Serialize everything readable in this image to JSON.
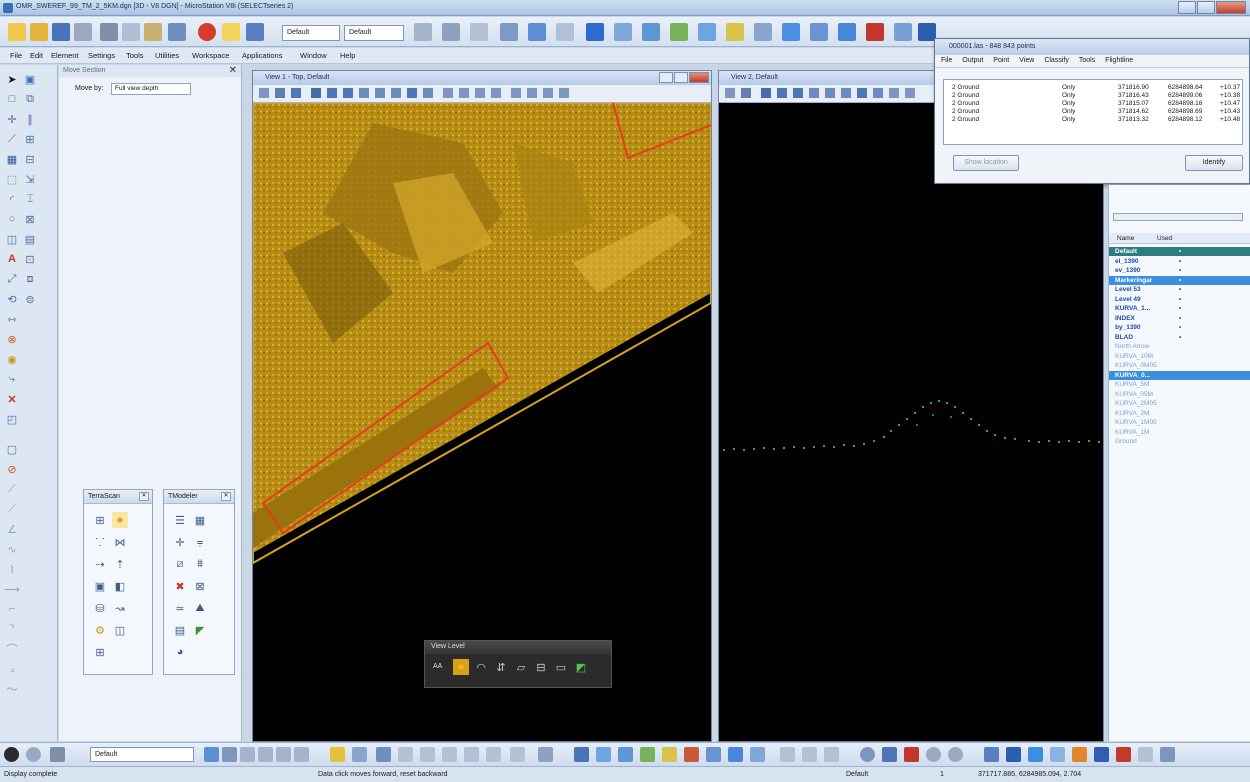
{
  "window": {
    "title": "OMR_SWEREF_99_TM_2_5KM.dgn [3D - V8 DGN] - MicroStation V8i (SELECTseries 2)"
  },
  "toolbar": {
    "level_combo": "Default",
    "style_combo": "Default"
  },
  "menu": [
    "File",
    "Edit",
    "Element",
    "Settings",
    "Tools",
    "Utilities",
    "Workspace",
    "Applications",
    "Window",
    "Help"
  ],
  "move_section": {
    "title": "Move Section",
    "move_by_label": "Move by:",
    "move_by_value": "Full view depth"
  },
  "mini_toolboxes": {
    "terrascan": "TerraScan",
    "tmodeler": "TModeler"
  },
  "view1": {
    "title": "View 1 - Top, Default"
  },
  "view2": {
    "title": "View 2, Default"
  },
  "view_level": {
    "title": "View Level",
    "aa_label": "AA"
  },
  "points_dialog": {
    "title": "000001.las - 848 843 points",
    "menu": [
      "File",
      "Output",
      "Point",
      "View",
      "Classify",
      "Tools",
      "Flightline"
    ],
    "rows": [
      {
        "cls": "2 Ground",
        "mode": "Only",
        "x": "371816.90",
        "y": "6284898.64",
        "z": "+10.37"
      },
      {
        "cls": "2 Ground",
        "mode": "Only",
        "x": "371816.43",
        "y": "6284899.06",
        "z": "+10.38"
      },
      {
        "cls": "2 Ground",
        "mode": "Only",
        "x": "371815.07",
        "y": "6284898.16",
        "z": "+10.47"
      },
      {
        "cls": "2 Ground",
        "mode": "Only",
        "x": "371814.62",
        "y": "6284898.69",
        "z": "+10.43"
      },
      {
        "cls": "2 Ground",
        "mode": "Only",
        "x": "371813.32",
        "y": "6284898.12",
        "z": "+10.48"
      }
    ],
    "show_location": "Show location",
    "identify": "Identify"
  },
  "levels": {
    "header_name": "Name",
    "header_used": "Used",
    "items": [
      {
        "name": "Default",
        "used": "•",
        "style": "sel-dark"
      },
      {
        "name": "el_1390",
        "used": "•",
        "style": "used"
      },
      {
        "name": "ev_1390",
        "used": "•",
        "style": "used"
      },
      {
        "name": "Markeringar",
        "used": "•",
        "style": "sel-blue"
      },
      {
        "name": "Level 53",
        "used": "•",
        "style": "used"
      },
      {
        "name": "Level 49",
        "used": "•",
        "style": "used"
      },
      {
        "name": "KURVA_1...",
        "used": "•",
        "style": "used"
      },
      {
        "name": "INDEX",
        "used": "•",
        "style": "used"
      },
      {
        "name": "by_1390",
        "used": "•",
        "style": "used"
      },
      {
        "name": "BLAD",
        "used": "•",
        "style": "used"
      },
      {
        "name": "North Arrow",
        "used": "",
        "style": "unused"
      },
      {
        "name": "KURVA_10M",
        "used": "",
        "style": "unused"
      },
      {
        "name": "KURVA_0M05",
        "used": "",
        "style": "unused"
      },
      {
        "name": "KURVA_0...",
        "used": "",
        "style": "sel-blue"
      },
      {
        "name": "KURVA_5M",
        "used": "",
        "style": "unused"
      },
      {
        "name": "KURVA_05M",
        "used": "",
        "style": "unused"
      },
      {
        "name": "KURVA_2M05",
        "used": "",
        "style": "unused"
      },
      {
        "name": "KURVA_2M",
        "used": "",
        "style": "unused"
      },
      {
        "name": "KURVA_1M05",
        "used": "",
        "style": "unused"
      },
      {
        "name": "KURVA_1M",
        "used": "",
        "style": "unused"
      },
      {
        "name": "Ground",
        "used": "",
        "style": "unused"
      }
    ]
  },
  "bottom_toolbar": {
    "level": "Default"
  },
  "status": {
    "message": "Display complete",
    "prompt": "Data click moves forward, reset backward",
    "level": "Default",
    "view": "1",
    "coords": "371717.885, 6284985.094, 2.704"
  },
  "colors": {
    "accent": "#3a6fb5",
    "selected_dark": "#2f7d7d",
    "selected_blue": "#3b8ee0",
    "surface": "#b88d14",
    "outline": "#e63b1e",
    "ground_points": "#d8a021",
    "classified_points": "#2fb12f"
  }
}
